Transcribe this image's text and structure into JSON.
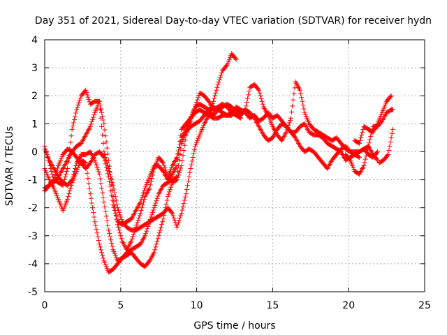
{
  "chart_data": {
    "type": "scatter",
    "title": "Day 351 of 2021, Sidereal Day-to-day VTEC variation (SDTVAR) for receiver hydn",
    "xlabel": "GPS time / hours",
    "ylabel": "SDTVAR / TECUs",
    "xlim": [
      0,
      25
    ],
    "ylim": [
      -5,
      4
    ],
    "xticks": [
      "0",
      "5",
      "10",
      "15",
      "20",
      "25"
    ],
    "yticks": [
      "-5",
      "-4",
      "-3",
      "-2",
      "-1",
      "0",
      "1",
      "2",
      "3",
      "4"
    ],
    "grid": true,
    "legend": "none",
    "marker": "+",
    "color": "#ff0000",
    "series": [
      {
        "x": [
          0.0,
          0.3,
          0.6,
          0.9,
          1.2,
          1.5,
          1.8,
          2.1,
          2.4,
          2.7,
          3.0,
          3.3,
          3.6,
          3.9,
          4.2,
          4.5,
          4.8,
          5.1,
          5.4,
          5.7,
          6.0,
          6.3,
          6.6,
          6.9,
          7.2,
          7.5,
          7.8,
          8.1,
          8.4,
          8.7,
          9.0,
          9.3,
          9.6,
          9.9,
          10.2,
          10.5,
          10.8,
          11.1,
          11.4,
          11.7,
          12.0,
          12.3,
          12.6
        ],
        "y": [
          -1.3,
          -1.2,
          -1.1,
          -0.9,
          -0.6,
          -0.3,
          0.0,
          0.2,
          0.3,
          0.6,
          0.9,
          1.4,
          1.8,
          0.0,
          -0.6,
          -1.2,
          -2.0,
          -2.5,
          -2.7,
          -2.8,
          -2.8,
          -2.7,
          -2.6,
          -2.5,
          -2.4,
          -2.3,
          -2.2,
          -2.0,
          -2.2,
          -2.7,
          -2.2,
          -1.5,
          -0.6,
          0.2,
          0.6,
          1.0,
          1.3,
          1.8,
          2.4,
          2.9,
          3.1,
          3.5,
          3.3
        ]
      },
      {
        "x": [
          0.0,
          0.3,
          0.6,
          0.9,
          1.2,
          1.5,
          1.8,
          2.1,
          2.4,
          2.7,
          3.0,
          3.3,
          3.6,
          3.9,
          4.2,
          4.5,
          4.8,
          5.1,
          5.4,
          5.7,
          6.0,
          6.3,
          6.6,
          6.9,
          7.2,
          7.5,
          7.8,
          8.1,
          8.4,
          8.7,
          9.0,
          9.3,
          9.6,
          9.9,
          10.2,
          10.5,
          10.8,
          11.1,
          11.4,
          11.7,
          12.0,
          12.3,
          12.6,
          12.9
        ],
        "y": [
          -0.6,
          -1.0,
          -1.3,
          -1.7,
          -2.1,
          -1.7,
          -1.1,
          -0.7,
          -0.3,
          -0.4,
          -1.5,
          -2.5,
          -3.3,
          -3.9,
          -4.3,
          -4.2,
          -4.0,
          -3.8,
          -3.7,
          -3.6,
          -3.8,
          -4.0,
          -4.1,
          -3.9,
          -3.6,
          -3.0,
          -2.4,
          -1.6,
          -1.1,
          -1.0,
          -0.5,
          0.6,
          1.2,
          1.6,
          2.1,
          2.0,
          1.8,
          1.5,
          1.6,
          1.7,
          1.6,
          1.4,
          1.3,
          1.2
        ]
      },
      {
        "x": [
          0.0,
          0.3,
          0.6,
          0.9,
          1.2,
          1.5,
          1.8,
          2.1,
          2.4,
          2.7,
          3.0,
          3.3,
          3.6,
          3.9,
          4.2,
          4.5,
          4.8,
          5.1,
          5.4,
          5.7,
          6.0,
          6.3,
          6.6,
          6.9,
          7.2,
          7.5,
          7.8,
          8.1,
          8.4,
          8.7,
          9.0,
          9.3,
          9.6,
          9.9,
          10.2,
          10.5,
          10.8,
          11.1,
          11.4,
          11.7,
          12.0,
          12.3,
          12.6,
          12.9,
          13.2,
          13.5,
          13.8,
          14.1,
          14.4,
          14.7,
          15.0,
          15.3,
          15.6,
          15.9,
          16.2,
          16.5,
          16.8,
          17.1,
          17.4,
          17.7,
          18.0,
          18.3,
          18.6,
          18.9,
          19.2,
          19.5,
          19.8,
          20.1,
          20.4,
          20.7,
          21.0,
          21.3,
          21.6,
          21.9
        ],
        "y": [
          0.2,
          -0.4,
          -1.0,
          -1.1,
          -1.2,
          -0.6,
          0.8,
          1.5,
          2.0,
          2.2,
          1.7,
          1.8,
          1.8,
          1.0,
          -0.3,
          -1.6,
          -2.6,
          -3.2,
          -3.5,
          -3.2,
          -2.7,
          -2.2,
          -1.6,
          -1.3,
          -0.6,
          -0.2,
          -0.4,
          -0.9,
          -0.5,
          -0.2,
          0.5,
          0.8,
          1.1,
          1.6,
          1.7,
          1.6,
          1.5,
          1.3,
          1.5,
          1.4,
          1.3,
          1.3,
          1.5,
          1.4,
          1.5,
          2.3,
          2.4,
          2.2,
          1.6,
          1.3,
          0.9,
          0.6,
          0.4,
          0.7,
          1.2,
          2.5,
          2.2,
          1.4,
          1.0,
          0.8,
          0.7,
          0.6,
          0.5,
          0.4,
          0.5,
          0.3,
          0.1,
          0.0,
          0.0,
          0.0,
          0.1,
          0.2,
          -0.1,
          -0.3
        ]
      },
      {
        "x": [
          0.0,
          0.3,
          0.6,
          0.9,
          1.2,
          1.5,
          1.8,
          2.1,
          2.4,
          2.7,
          3.0,
          3.3,
          3.6,
          3.9,
          4.2,
          4.5,
          4.8,
          5.1,
          5.4,
          5.7,
          6.0,
          6.3,
          6.6,
          6.9,
          7.2,
          7.5,
          7.8,
          8.1,
          8.4,
          8.7,
          9.0,
          9.3,
          9.6,
          9.9,
          10.2,
          10.5,
          10.8,
          11.1,
          11.4,
          11.7,
          12.0,
          12.3,
          12.6,
          12.9,
          13.2,
          13.5,
          13.8,
          14.1,
          14.4,
          14.7,
          15.0,
          15.3,
          15.6,
          15.9,
          16.2,
          16.5,
          16.8,
          17.1,
          17.4,
          17.7,
          18.0,
          18.3,
          18.6,
          18.9,
          19.2,
          19.5,
          19.8,
          20.1,
          20.4,
          20.7,
          21.0,
          21.3,
          21.6,
          21.9
        ],
        "y": [
          -1.4,
          -1.2,
          -1.0,
          -0.5,
          -0.1,
          0.1,
          0.0,
          -0.2,
          -0.4,
          -0.6,
          -0.4,
          -0.1,
          0.0,
          -0.2,
          -0.9,
          -1.9,
          -2.5,
          -2.6,
          -2.5,
          -2.4,
          -2.1,
          -1.8,
          -1.3,
          -0.9,
          -0.5,
          -0.5,
          -0.7,
          -1.0,
          -0.8,
          -0.5,
          0.8,
          1.0,
          1.2,
          1.4,
          1.5,
          1.4,
          1.3,
          1.2,
          1.2,
          1.3,
          1.3,
          1.4,
          1.6,
          1.5,
          1.4,
          1.2,
          1.3,
          1.1,
          1.2,
          1.4,
          1.2,
          1.3,
          1.1,
          0.9,
          0.7,
          0.7,
          0.9,
          1.0,
          0.7,
          0.6,
          0.6,
          0.5,
          0.3,
          0.2,
          0.1,
          0.0,
          -0.3,
          -0.2,
          -0.1,
          0.0,
          0.1,
          -0.1,
          -0.2,
          0.0
        ]
      },
      {
        "x": [
          0.0,
          0.3,
          0.6,
          0.9,
          1.2,
          1.5,
          1.8,
          2.1,
          2.4,
          2.7,
          3.0,
          3.3,
          3.6,
          3.9,
          4.2,
          4.5,
          4.8,
          5.1,
          5.4,
          5.7,
          6.0,
          6.3,
          6.6,
          6.9,
          7.2,
          7.5,
          7.8,
          8.1,
          8.4,
          8.7,
          9.0,
          9.3,
          9.6,
          9.9,
          10.2,
          10.5,
          10.8,
          11.1,
          11.4,
          11.7,
          12.0,
          12.3,
          12.6,
          12.9,
          13.2,
          13.5,
          13.8,
          14.1,
          14.4,
          14.7,
          15.0,
          15.3,
          15.6,
          15.9,
          16.2,
          16.5,
          16.8,
          17.1,
          17.4,
          17.7,
          18.0,
          18.3,
          18.6,
          18.9,
          19.2,
          19.5,
          19.8,
          20.1,
          20.4,
          20.7
        ],
        "y": [
          0.1,
          -0.3,
          -0.6,
          -0.9,
          -1.1,
          -1.2,
          -1.0,
          -0.4,
          -0.1,
          -0.1,
          0.0,
          -0.3,
          -0.8,
          -1.8,
          -2.8,
          -3.5,
          -3.9,
          -3.8,
          -3.6,
          -3.5,
          -3.4,
          -3.3,
          -3.0,
          -2.5,
          -2.0,
          -1.5,
          -1.2,
          -1.1,
          -1.0,
          -0.9,
          0.3,
          0.7,
          0.9,
          1.0,
          1.1,
          1.3,
          1.5,
          1.6,
          1.5,
          1.6,
          1.7,
          1.6,
          1.4,
          1.3,
          1.5,
          1.4,
          1.2,
          0.9,
          0.6,
          0.4,
          0.5,
          0.8,
          1.0,
          0.9,
          0.7,
          0.5,
          0.2,
          0.0,
          0.1,
          0.0,
          -0.2,
          -0.4,
          -0.6,
          -0.3,
          -0.1,
          0.1,
          0.2,
          0.0,
          -0.1,
          -0.2
        ]
      },
      {
        "x": [
          19.8,
          20.1,
          20.4,
          20.7,
          21.0,
          21.3,
          21.6,
          21.9,
          22.2,
          22.5,
          22.8,
          22.9
        ],
        "y": [
          -0.1,
          -0.3,
          -0.7,
          -0.8,
          -0.5,
          0.2,
          0.9,
          0.9,
          1.1,
          1.4,
          1.5,
          1.5
        ]
      },
      {
        "x": [
          20.4,
          20.7,
          21.0,
          21.3,
          21.6,
          21.9,
          22.2,
          22.5,
          22.8
        ],
        "y": [
          0.4,
          0.3,
          0.9,
          0.8,
          0.7,
          1.0,
          1.4,
          1.8,
          2.0
        ]
      },
      {
        "x": [
          22.0,
          22.3,
          22.6,
          22.9
        ],
        "y": [
          -0.4,
          -0.3,
          -0.1,
          0.8
        ]
      }
    ]
  }
}
